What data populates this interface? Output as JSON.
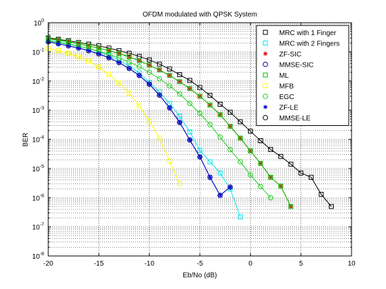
{
  "chart_data": {
    "type": "line",
    "title": "OFDM modulated with QPSK System",
    "xlabel": "Eb/No (dB)",
    "ylabel": "BER",
    "xlim": [
      -20,
      10
    ],
    "ylim": [
      1e-08,
      1
    ],
    "yscale": "log",
    "grid": true,
    "legend_position": "top-right",
    "x_ticks": [
      "-20",
      "-15",
      "-10",
      "-5",
      "0",
      "5",
      "10"
    ],
    "y_ticks": [
      {
        "base": "10",
        "exp": "-8"
      },
      {
        "base": "10",
        "exp": "-7"
      },
      {
        "base": "10",
        "exp": "-6"
      },
      {
        "base": "10",
        "exp": "-5"
      },
      {
        "base": "10",
        "exp": "-4"
      },
      {
        "base": "10",
        "exp": "-3"
      },
      {
        "base": "10",
        "exp": "-2"
      },
      {
        "base": "10",
        "exp": "-1"
      },
      {
        "base": "10",
        "exp": "0"
      }
    ],
    "series": [
      {
        "name": "MRC with 1 Finger",
        "color": "#000000",
        "marker": "square",
        "x": [
          -20,
          -19,
          -18,
          -17,
          -16,
          -15,
          -14,
          -13,
          -12,
          -11,
          -10,
          -9,
          -8,
          -7,
          -6,
          -5,
          -4,
          -3,
          -2,
          -1,
          0,
          1,
          2,
          3,
          4,
          5,
          6,
          7,
          8
        ],
        "y": [
          0.3,
          0.27,
          0.24,
          0.21,
          0.185,
          0.16,
          0.135,
          0.11,
          0.09,
          0.07,
          0.053,
          0.038,
          0.026,
          0.0165,
          0.0105,
          0.006,
          0.0032,
          0.0016,
          0.00085,
          0.0004,
          0.00019,
          9e-05,
          4.5e-05,
          2.6e-05,
          1.4e-05,
          7e-06,
          5e-06,
          1.3e-06,
          5e-07
        ]
      },
      {
        "name": "MRC with 2 Fingers",
        "color": "#00e5ee",
        "marker": "square",
        "x": [
          -20,
          -19,
          -18,
          -17,
          -16,
          -15,
          -14,
          -13,
          -12,
          -11,
          -10,
          -9,
          -8,
          -7,
          -6,
          -5,
          -4,
          -3,
          -2,
          -1
        ],
        "y": [
          0.25,
          0.22,
          0.19,
          0.16,
          0.13,
          0.1,
          0.075,
          0.052,
          0.033,
          0.019,
          0.009,
          0.0042,
          0.0017,
          0.00062,
          0.00018,
          4.2e-05,
          1.7e-05,
          7e-06,
          2e-06,
          2.2e-07
        ]
      },
      {
        "name": "ZF-SIC",
        "color": "#e00000",
        "marker": "star",
        "x": [
          -20,
          -19,
          -18,
          -17,
          -16,
          -15,
          -14,
          -13,
          -12,
          -11,
          -10,
          -9,
          -8,
          -7,
          -6,
          -5,
          -4,
          -3,
          -2,
          -1,
          0,
          1,
          2,
          3,
          4
        ],
        "y": [
          0.28,
          0.25,
          0.22,
          0.19,
          0.16,
          0.135,
          0.11,
          0.088,
          0.068,
          0.05,
          0.035,
          0.024,
          0.0155,
          0.0095,
          0.0055,
          0.003,
          0.0015,
          0.0007,
          0.00028,
          0.00011,
          4e-05,
          1.5e-05,
          5e-06,
          2.5e-06,
          5e-07
        ]
      },
      {
        "name": "MMSE-SIC",
        "color": "#00008b",
        "marker": "circle",
        "x": [
          -20,
          -19,
          -18,
          -17,
          -16,
          -15,
          -14,
          -13,
          -12,
          -11,
          -10,
          -9,
          -8,
          -7,
          -6,
          -5,
          -4,
          -3,
          -2
        ],
        "y": [
          0.22,
          0.19,
          0.16,
          0.135,
          0.11,
          0.085,
          0.063,
          0.043,
          0.027,
          0.0155,
          0.0078,
          0.0033,
          0.0012,
          0.00038,
          9.5e-05,
          2.5e-05,
          5e-06,
          1.2e-06,
          2.3e-06
        ]
      },
      {
        "name": "ML",
        "color": "#00c000",
        "marker": "square",
        "x": [
          -20,
          -19,
          -18,
          -17,
          -16,
          -15,
          -14,
          -13,
          -12,
          -11,
          -10,
          -9,
          -8,
          -7,
          -6,
          -5,
          -4,
          -3,
          -2,
          -1,
          0,
          1,
          2,
          3,
          4
        ],
        "y": [
          0.28,
          0.25,
          0.22,
          0.19,
          0.16,
          0.135,
          0.11,
          0.088,
          0.068,
          0.05,
          0.035,
          0.024,
          0.0155,
          0.0095,
          0.0055,
          0.003,
          0.0015,
          0.0007,
          0.00028,
          0.00011,
          4e-05,
          1.5e-05,
          5e-06,
          2.5e-06,
          5e-07
        ]
      },
      {
        "name": "MFB",
        "color": "#ffff00",
        "marker": "square",
        "x": [
          -20,
          -19,
          -18,
          -17,
          -16,
          -15,
          -14,
          -13,
          -12,
          -11,
          -10,
          -9,
          -8,
          -7
        ],
        "y": [
          0.13,
          0.11,
          0.09,
          0.068,
          0.048,
          0.03,
          0.017,
          0.0085,
          0.0038,
          0.0014,
          0.00042,
          0.00011,
          1.8e-05,
          3e-06
        ]
      },
      {
        "name": "EGC",
        "color": "#22cc22",
        "marker": "circle",
        "x": [
          -20,
          -19,
          -18,
          -17,
          -16,
          -15,
          -14,
          -13,
          -12,
          -11,
          -10,
          -9,
          -8,
          -7,
          -6,
          -5,
          -4,
          -3,
          -2,
          -1,
          0,
          1,
          2
        ],
        "y": [
          0.24,
          0.21,
          0.18,
          0.155,
          0.13,
          0.105,
          0.082,
          0.062,
          0.045,
          0.031,
          0.02,
          0.012,
          0.0068,
          0.0036,
          0.0017,
          0.00078,
          0.00032,
          0.00012,
          4.4e-05,
          1.7e-05,
          6e-06,
          2.4e-06,
          1e-06
        ]
      },
      {
        "name": "ZF-LE",
        "color": "#0000cd",
        "marker": "star",
        "x": [
          -20,
          -19,
          -18,
          -17,
          -16,
          -15,
          -14,
          -13,
          -12,
          -11,
          -10,
          -9,
          -8,
          -7,
          -6,
          -5,
          -4,
          -3,
          -2
        ],
        "y": [
          0.22,
          0.19,
          0.16,
          0.135,
          0.11,
          0.085,
          0.063,
          0.043,
          0.027,
          0.0155,
          0.0078,
          0.0033,
          0.0012,
          0.00038,
          9.5e-05,
          2.5e-05,
          5e-06,
          1.2e-06,
          2.3e-06
        ]
      },
      {
        "name": "MMSE-LE",
        "color": "#000000",
        "marker": "circle",
        "x": [],
        "y": []
      }
    ]
  }
}
